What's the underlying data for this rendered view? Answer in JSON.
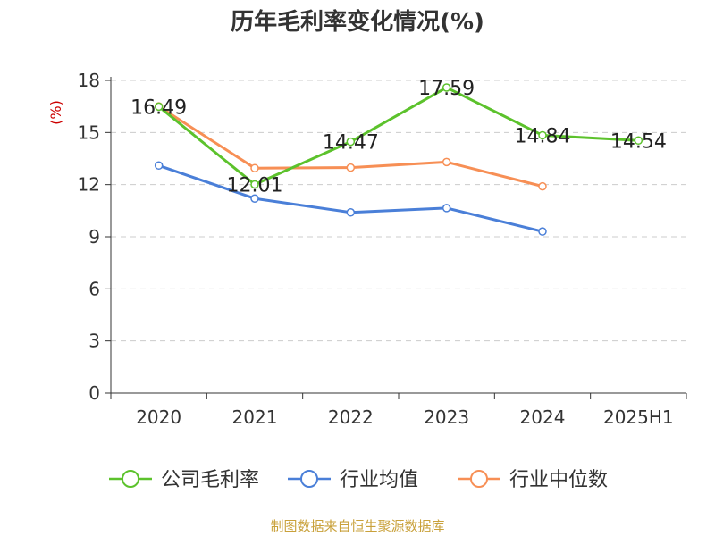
{
  "chart_data": {
    "type": "line",
    "title": "历年毛利率变化情况(%)",
    "ylabel": "(%)",
    "categories": [
      "2020",
      "2021",
      "2022",
      "2023",
      "2024",
      "2025H1"
    ],
    "ylim": [
      0,
      18
    ],
    "yticks": [
      0,
      3,
      6,
      9,
      12,
      15,
      18
    ],
    "grid": true,
    "legend_position": "bottom",
    "series": [
      {
        "name": "公司毛利率",
        "color": "#5cc22c",
        "values": [
          16.49,
          12.01,
          14.47,
          17.59,
          14.84,
          14.54
        ],
        "labels": [
          "16.49",
          "12.01",
          "14.47",
          "17.59",
          "14.84",
          "14.54"
        ]
      },
      {
        "name": "行业均值",
        "color": "#4a7fd8",
        "values": [
          13.1,
          11.2,
          10.4,
          10.65,
          9.3,
          null
        ]
      },
      {
        "name": "行业中位数",
        "color": "#f78f55",
        "values": [
          16.5,
          12.95,
          12.98,
          13.3,
          11.9,
          null
        ]
      }
    ],
    "source": "制图数据来自恒生聚源数据库"
  }
}
